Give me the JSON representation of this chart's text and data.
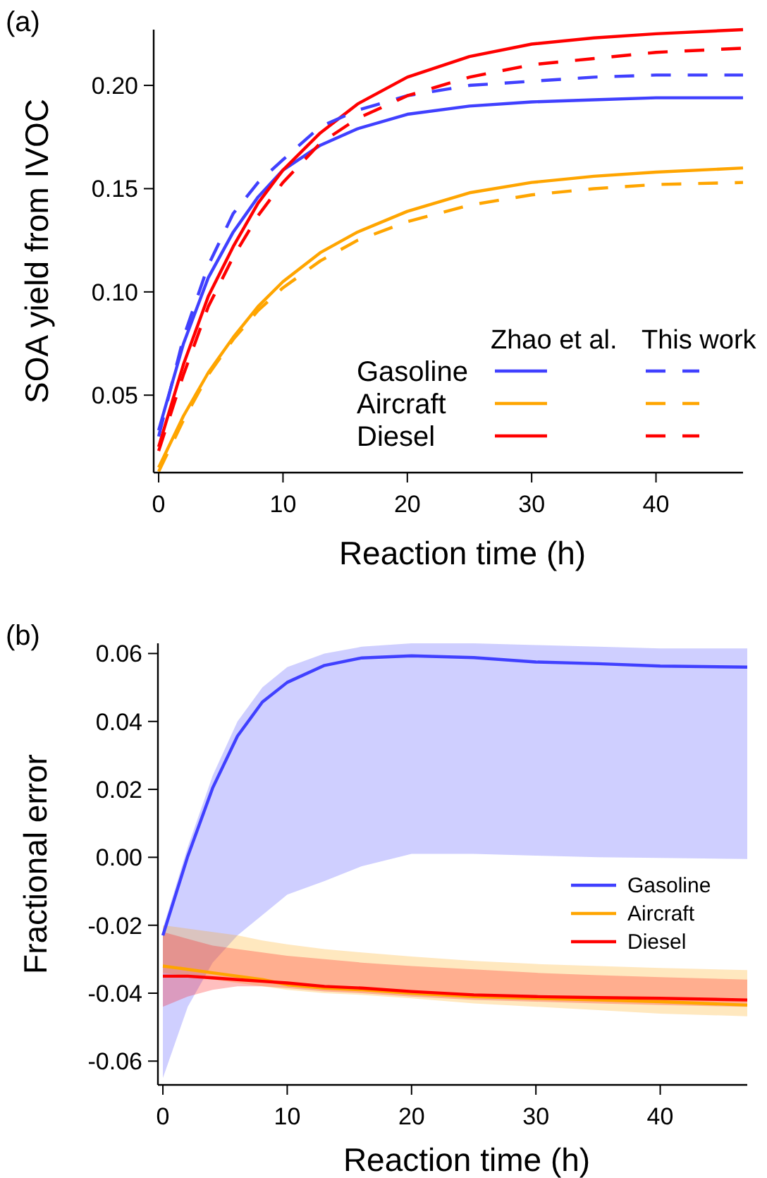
{
  "chart_data": [
    {
      "type": "line",
      "xlabel": "Reaction time (h)",
      "ylabel": "SOA yield from IVOC",
      "annotations": [
        "(a)",
        "Zhao et al.",
        "This work"
      ],
      "x": [
        0,
        2,
        4,
        6,
        8,
        10,
        13,
        16,
        20,
        25,
        30,
        35,
        40,
        47
      ],
      "xlim": [
        -0.4,
        47
      ],
      "ylim": [
        0.0125,
        0.227
      ],
      "xticks": [
        0,
        10,
        20,
        30,
        40
      ],
      "yticks": [
        0.05,
        {
          "value": 0.1,
          "label": "0.10"
        },
        0.15,
        {
          "value": 0.2,
          "label": "0.20"
        }
      ],
      "legend": "bottom right",
      "series": [
        {
          "name": "Gasoline",
          "color": "#4040ff",
          "line_style": "solid",
          "values": [
            0.033,
            0.075,
            0.107,
            0.129,
            0.146,
            0.159,
            0.171,
            0.179,
            0.186,
            0.19,
            0.192,
            0.193,
            0.194,
            0.194
          ]
        },
        {
          "name": "Aircraft",
          "color": "#ffa500",
          "line_style": "solid",
          "values": [
            0.015,
            0.04,
            0.061,
            0.078,
            0.093,
            0.105,
            0.119,
            0.129,
            0.139,
            0.148,
            0.153,
            0.156,
            0.158,
            0.16
          ]
        },
        {
          "name": "Diesel",
          "color": "#ff0000",
          "line_style": "solid",
          "values": [
            0.025,
            0.065,
            0.098,
            0.122,
            0.143,
            0.159,
            0.177,
            0.191,
            0.204,
            0.214,
            0.22,
            0.223,
            0.225,
            0.227
          ]
        },
        {
          "color": "#4040ff",
          "line_style": "dashed",
          "values": [
            0.03,
            0.078,
            0.113,
            0.138,
            0.153,
            0.164,
            0.18,
            0.188,
            0.195,
            0.2,
            0.202,
            0.204,
            0.205,
            0.205
          ]
        },
        {
          "color": "#ffa500",
          "line_style": "dashed",
          "values": [
            0.013,
            0.038,
            0.06,
            0.077,
            0.091,
            0.102,
            0.115,
            0.125,
            0.134,
            0.142,
            0.147,
            0.15,
            0.152,
            0.153
          ]
        },
        {
          "color": "#ff0000",
          "line_style": "dashed",
          "values": [
            0.023,
            0.06,
            0.093,
            0.117,
            0.137,
            0.153,
            0.172,
            0.184,
            0.195,
            0.204,
            0.21,
            0.213,
            0.216,
            0.218
          ]
        }
      ]
    },
    {
      "type": "line",
      "xlabel": "Reaction time (h)",
      "ylabel": "Fractional error",
      "annotations": [
        "(b)"
      ],
      "x": [
        0,
        2,
        4,
        6,
        8,
        10,
        13,
        16,
        20,
        25,
        30,
        35,
        40,
        47
      ],
      "xlim": [
        -0.4,
        47
      ],
      "ylim": [
        -0.067,
        0.063
      ],
      "xticks": [
        0,
        10,
        20,
        30,
        40
      ],
      "yticks": [
        {
          "value": -0.06,
          "label": "-0.06"
        },
        {
          "value": -0.04,
          "label": "-0.04"
        },
        {
          "value": -0.02,
          "label": "-0.02"
        },
        {
          "value": 0,
          "label": "0.00"
        },
        {
          "value": 0.02,
          "label": "0.02"
        },
        {
          "value": 0.04,
          "label": "0.04"
        },
        {
          "value": 0.06,
          "label": "0.06"
        }
      ],
      "legend": "right",
      "series": [
        {
          "name": "Gasoline",
          "color": "#4040ff",
          "line_style": "solid",
          "values": [
            -0.023,
            0.0003,
            0.0204,
            0.0357,
            0.0457,
            0.0515,
            0.0565,
            0.0587,
            0.0593,
            0.0588,
            0.0575,
            0.057,
            0.0563,
            0.056
          ],
          "lower": [
            -0.065,
            -0.044,
            -0.031,
            -0.023,
            -0.017,
            -0.011,
            -0.007,
            -0.0026,
            0.001,
            0.001,
            0.0005,
            0,
            -0.0002,
            -0.0005
          ],
          "upper": [
            -0.021,
            0.003,
            0.024,
            0.04,
            0.05,
            0.056,
            0.06,
            0.062,
            0.063,
            0.063,
            0.0625,
            0.062,
            0.0615,
            0.0615
          ]
        },
        {
          "name": "Aircraft",
          "color": "#ffa500",
          "line_style": "solid",
          "values": [
            -0.032,
            -0.033,
            -0.034,
            -0.035,
            -0.036,
            -0.0375,
            -0.0385,
            -0.039,
            -0.04,
            -0.041,
            -0.0415,
            -0.042,
            -0.0425,
            -0.0435
          ],
          "lower": [
            -0.034,
            -0.035,
            -0.036,
            -0.037,
            -0.038,
            -0.039,
            -0.04,
            -0.0405,
            -0.0415,
            -0.043,
            -0.044,
            -0.045,
            -0.046,
            -0.0468
          ],
          "upper": [
            -0.02,
            -0.021,
            -0.022,
            -0.023,
            -0.0245,
            -0.0256,
            -0.027,
            -0.028,
            -0.0292,
            -0.0305,
            -0.0314,
            -0.032,
            -0.0326,
            -0.0332
          ]
        },
        {
          "name": "Diesel",
          "color": "#ff0000",
          "line_style": "solid",
          "values": [
            -0.035,
            -0.035,
            -0.0355,
            -0.036,
            -0.0365,
            -0.037,
            -0.038,
            -0.0385,
            -0.0395,
            -0.0405,
            -0.041,
            -0.0413,
            -0.0415,
            -0.042
          ],
          "lower": [
            -0.044,
            -0.041,
            -0.039,
            -0.038,
            -0.038,
            -0.0385,
            -0.0395,
            -0.04,
            -0.041,
            -0.042,
            -0.0425,
            -0.043,
            -0.0435,
            -0.044
          ],
          "upper": [
            -0.022,
            -0.024,
            -0.026,
            -0.027,
            -0.028,
            -0.029,
            -0.03,
            -0.031,
            -0.032,
            -0.033,
            -0.034,
            -0.0347,
            -0.0353,
            -0.036
          ]
        }
      ]
    }
  ]
}
